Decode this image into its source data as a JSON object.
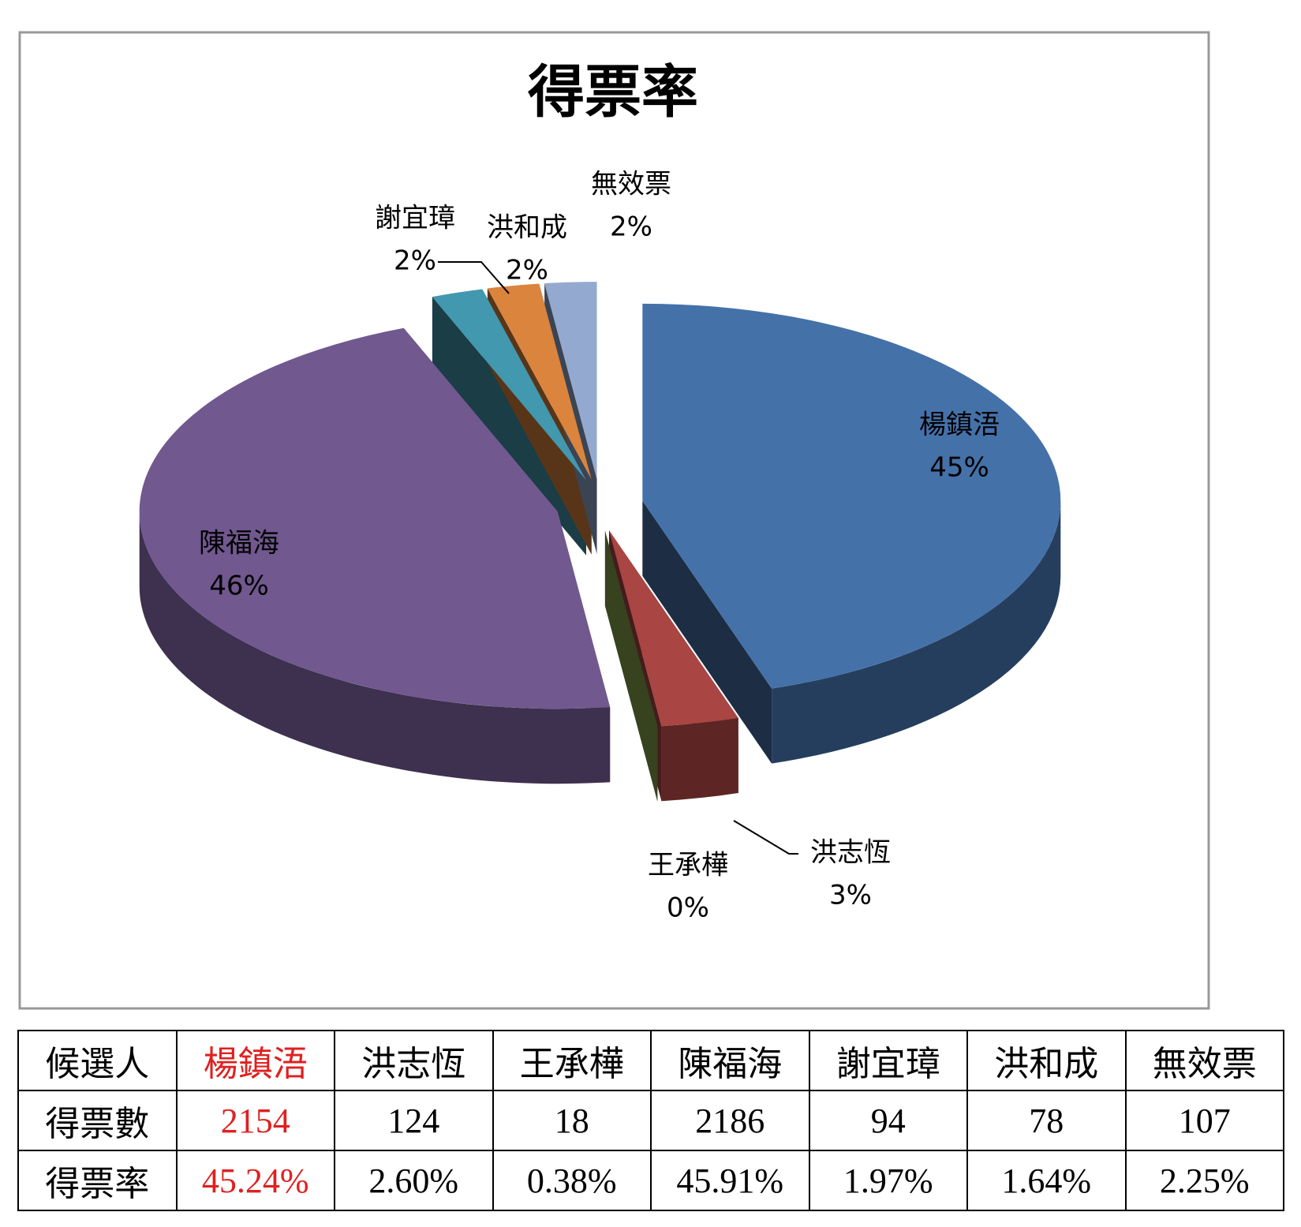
{
  "chart_data": {
    "type": "pie",
    "title": "得票率",
    "categories": [
      "楊鎮浯",
      "洪志恆",
      "王承樺",
      "陳福海",
      "謝宜璋",
      "洪和成",
      "無效票"
    ],
    "values": [
      45,
      3,
      0,
      46,
      2,
      2,
      2
    ],
    "value_labels": [
      "45%",
      "3%",
      "0%",
      "46%",
      "2%",
      "2%",
      "2%"
    ],
    "colors": [
      "#4571a9",
      "#a94543",
      "#89a54e",
      "#71588f",
      "#4198af",
      "#db843d",
      "#93a9cf"
    ]
  },
  "table": {
    "rows": [
      [
        "候選人",
        "楊鎮浯",
        "洪志恆",
        "王承樺",
        "陳福海",
        "謝宜璋",
        "洪和成",
        "無效票"
      ],
      [
        "得票數",
        2154,
        124,
        18,
        2186,
        94,
        78,
        107
      ],
      [
        "得票率",
        "45.24%",
        "2.60%",
        "0.38%",
        "45.91%",
        "1.97%",
        "1.64%",
        "2.25%"
      ]
    ]
  }
}
